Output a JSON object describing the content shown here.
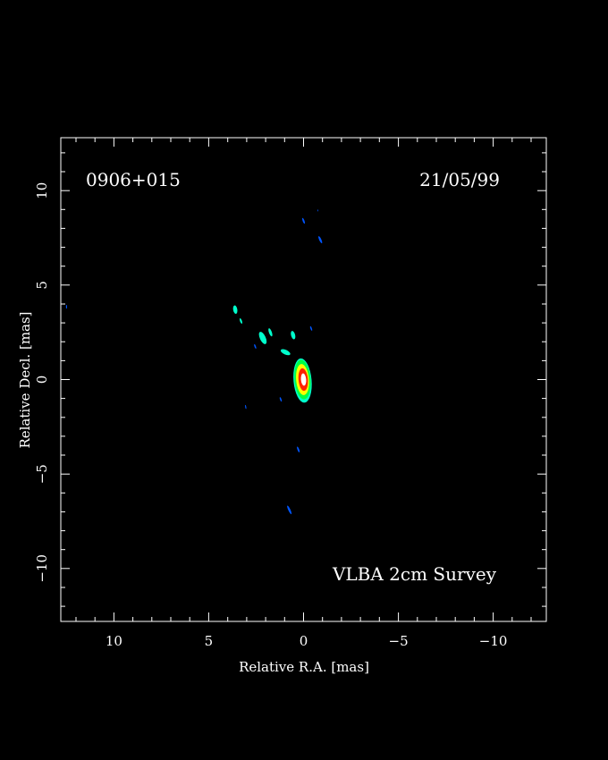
{
  "chart_data": {
    "type": "heatmap",
    "source_name": "0906+015",
    "date": "21/05/99",
    "survey": "VLBA 2cm Survey",
    "xlabel": "Relative R.A. [mas]",
    "ylabel": "Relative Decl. [mas]",
    "xlim": [
      12.8,
      -12.8
    ],
    "ylim": [
      -12.8,
      12.8
    ],
    "x_ticks": [
      10,
      5,
      0,
      -5,
      -10
    ],
    "x_tick_labels": [
      "10",
      "5",
      "0",
      "−5",
      "−10"
    ],
    "y_ticks": [
      10,
      5,
      0,
      -5,
      -10
    ],
    "y_tick_labels": [
      "10",
      "5",
      "0",
      "−5",
      "−10"
    ],
    "colormap": [
      "#0055ff",
      "#00ffcc",
      "#00ff44",
      "#ffff00",
      "#ff2200",
      "#ffffff"
    ],
    "colormap_levels": [
      "blue",
      "cyan",
      "green",
      "yellow",
      "red",
      "white"
    ],
    "background": "#000000",
    "core": {
      "ra": 0.0,
      "dec": 0.0
    },
    "features": [
      {
        "ra": 0.05,
        "dec": -0.05,
        "ra_width": 0.95,
        "dec_height": 2.35,
        "level": 1,
        "angle": -5
      },
      {
        "ra": 0.1,
        "dec": 0.3,
        "ra_width": 0.55,
        "dec_height": 1.4,
        "level": 1,
        "angle": -10
      },
      {
        "ra": 0.95,
        "dec": 1.45,
        "ra_width": 0.55,
        "dec_height": 0.25,
        "level": 1,
        "angle": 25
      },
      {
        "ra": 0.55,
        "dec": 2.35,
        "ra_width": 0.22,
        "dec_height": 0.45,
        "level": 1,
        "angle": -15
      },
      {
        "ra": 0.05,
        "dec": 0.0,
        "ra_width": 0.85,
        "dec_height": 2.1,
        "level": 2,
        "angle": -5
      },
      {
        "ra": 0.05,
        "dec": 0.0,
        "ra_width": 0.68,
        "dec_height": 1.65,
        "level": 3,
        "angle": -5
      },
      {
        "ra": 0.02,
        "dec": 0.0,
        "ra_width": 0.5,
        "dec_height": 1.2,
        "level": 4,
        "angle": -5
      },
      {
        "ra": 0.0,
        "dec": 0.0,
        "ra_width": 0.27,
        "dec_height": 0.65,
        "level": 5,
        "angle": -5
      },
      {
        "ra": 3.6,
        "dec": 3.7,
        "ra_width": 0.22,
        "dec_height": 0.45,
        "level": 1,
        "angle": -10
      },
      {
        "ra": 3.3,
        "dec": 3.1,
        "ra_width": 0.1,
        "dec_height": 0.3,
        "level": 1,
        "angle": -20
      },
      {
        "ra": 2.15,
        "dec": 2.2,
        "ra_width": 0.3,
        "dec_height": 0.7,
        "level": 1,
        "angle": -25
      },
      {
        "ra": 1.75,
        "dec": 2.5,
        "ra_width": 0.15,
        "dec_height": 0.45,
        "level": 1,
        "angle": -20
      },
      {
        "ra": -0.4,
        "dec": 2.7,
        "ra_width": 0.08,
        "dec_height": 0.25,
        "level": 0,
        "angle": -20
      },
      {
        "ra": 2.55,
        "dec": 1.75,
        "ra_width": 0.08,
        "dec_height": 0.25,
        "level": 0,
        "angle": -20
      },
      {
        "ra": 1.2,
        "dec": -1.05,
        "ra_width": 0.08,
        "dec_height": 0.25,
        "level": 0,
        "angle": -20
      },
      {
        "ra": 3.05,
        "dec": -1.45,
        "ra_width": 0.06,
        "dec_height": 0.22,
        "level": 0,
        "angle": -10
      },
      {
        "ra": 0.2,
        "dec": -0.3,
        "ra_width": 0.08,
        "dec_height": 0.25,
        "level": 0,
        "angle": -10
      },
      {
        "ra": 0.28,
        "dec": -3.7,
        "ra_width": 0.09,
        "dec_height": 0.32,
        "level": 0,
        "angle": -20
      },
      {
        "ra": 0.75,
        "dec": -6.9,
        "ra_width": 0.11,
        "dec_height": 0.5,
        "level": 0,
        "angle": -25
      },
      {
        "ra": 0.0,
        "dec": 8.4,
        "ra_width": 0.09,
        "dec_height": 0.32,
        "level": 0,
        "angle": -20
      },
      {
        "ra": -0.88,
        "dec": 7.4,
        "ra_width": 0.11,
        "dec_height": 0.42,
        "level": 0,
        "angle": -25
      },
      {
        "ra": -0.75,
        "dec": 8.95,
        "ra_width": 0.04,
        "dec_height": 0.1,
        "level": 0,
        "angle": 0
      },
      {
        "ra": 12.5,
        "dec": 3.85,
        "ra_width": 0.06,
        "dec_height": 0.2,
        "level": 0,
        "angle": 0
      }
    ]
  }
}
